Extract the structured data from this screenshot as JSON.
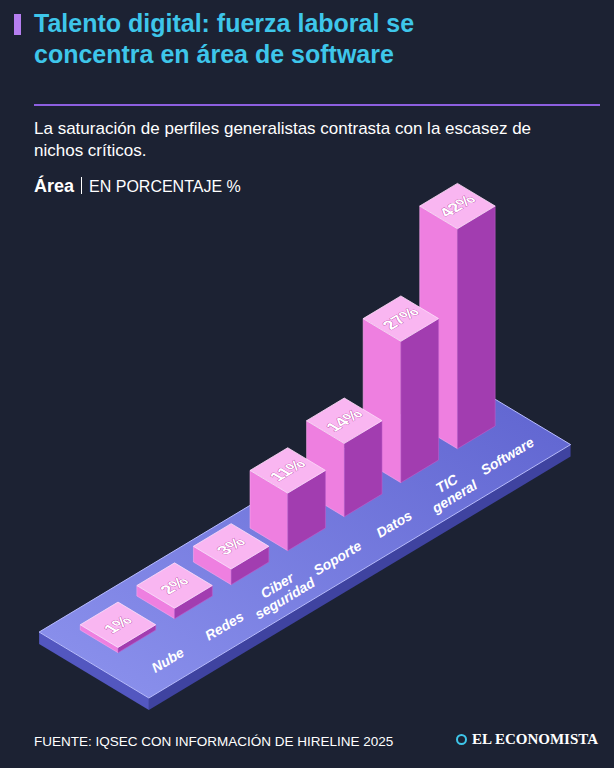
{
  "chart_data": {
    "type": "bar",
    "title": "Talento digital: fuerza laboral se concentra en área de software",
    "subtitle": "La saturación de perfiles generalistas contrasta con la escasez de nichos críticos.",
    "x_label": "Área",
    "y_label": "EN PORCENTAJE %",
    "source": "FUENTE: IQSEC CON INFORMACIÓN DE HIRELINE 2025",
    "publisher": "EL ECONOMISTA",
    "categories": [
      "Nube",
      "Redes",
      "Ciber seguridad",
      "Soporte",
      "Datos",
      "TIC general",
      "Software"
    ],
    "values": [
      1,
      2,
      3,
      11,
      14,
      27,
      42
    ],
    "value_labels": [
      "1%",
      "2%",
      "3%",
      "11%",
      "14%",
      "27%",
      "42%"
    ],
    "color": "#ee7fe0",
    "ylim": [
      0,
      42
    ],
    "data_labels": true,
    "tick_labels": false,
    "grid": false
  }
}
